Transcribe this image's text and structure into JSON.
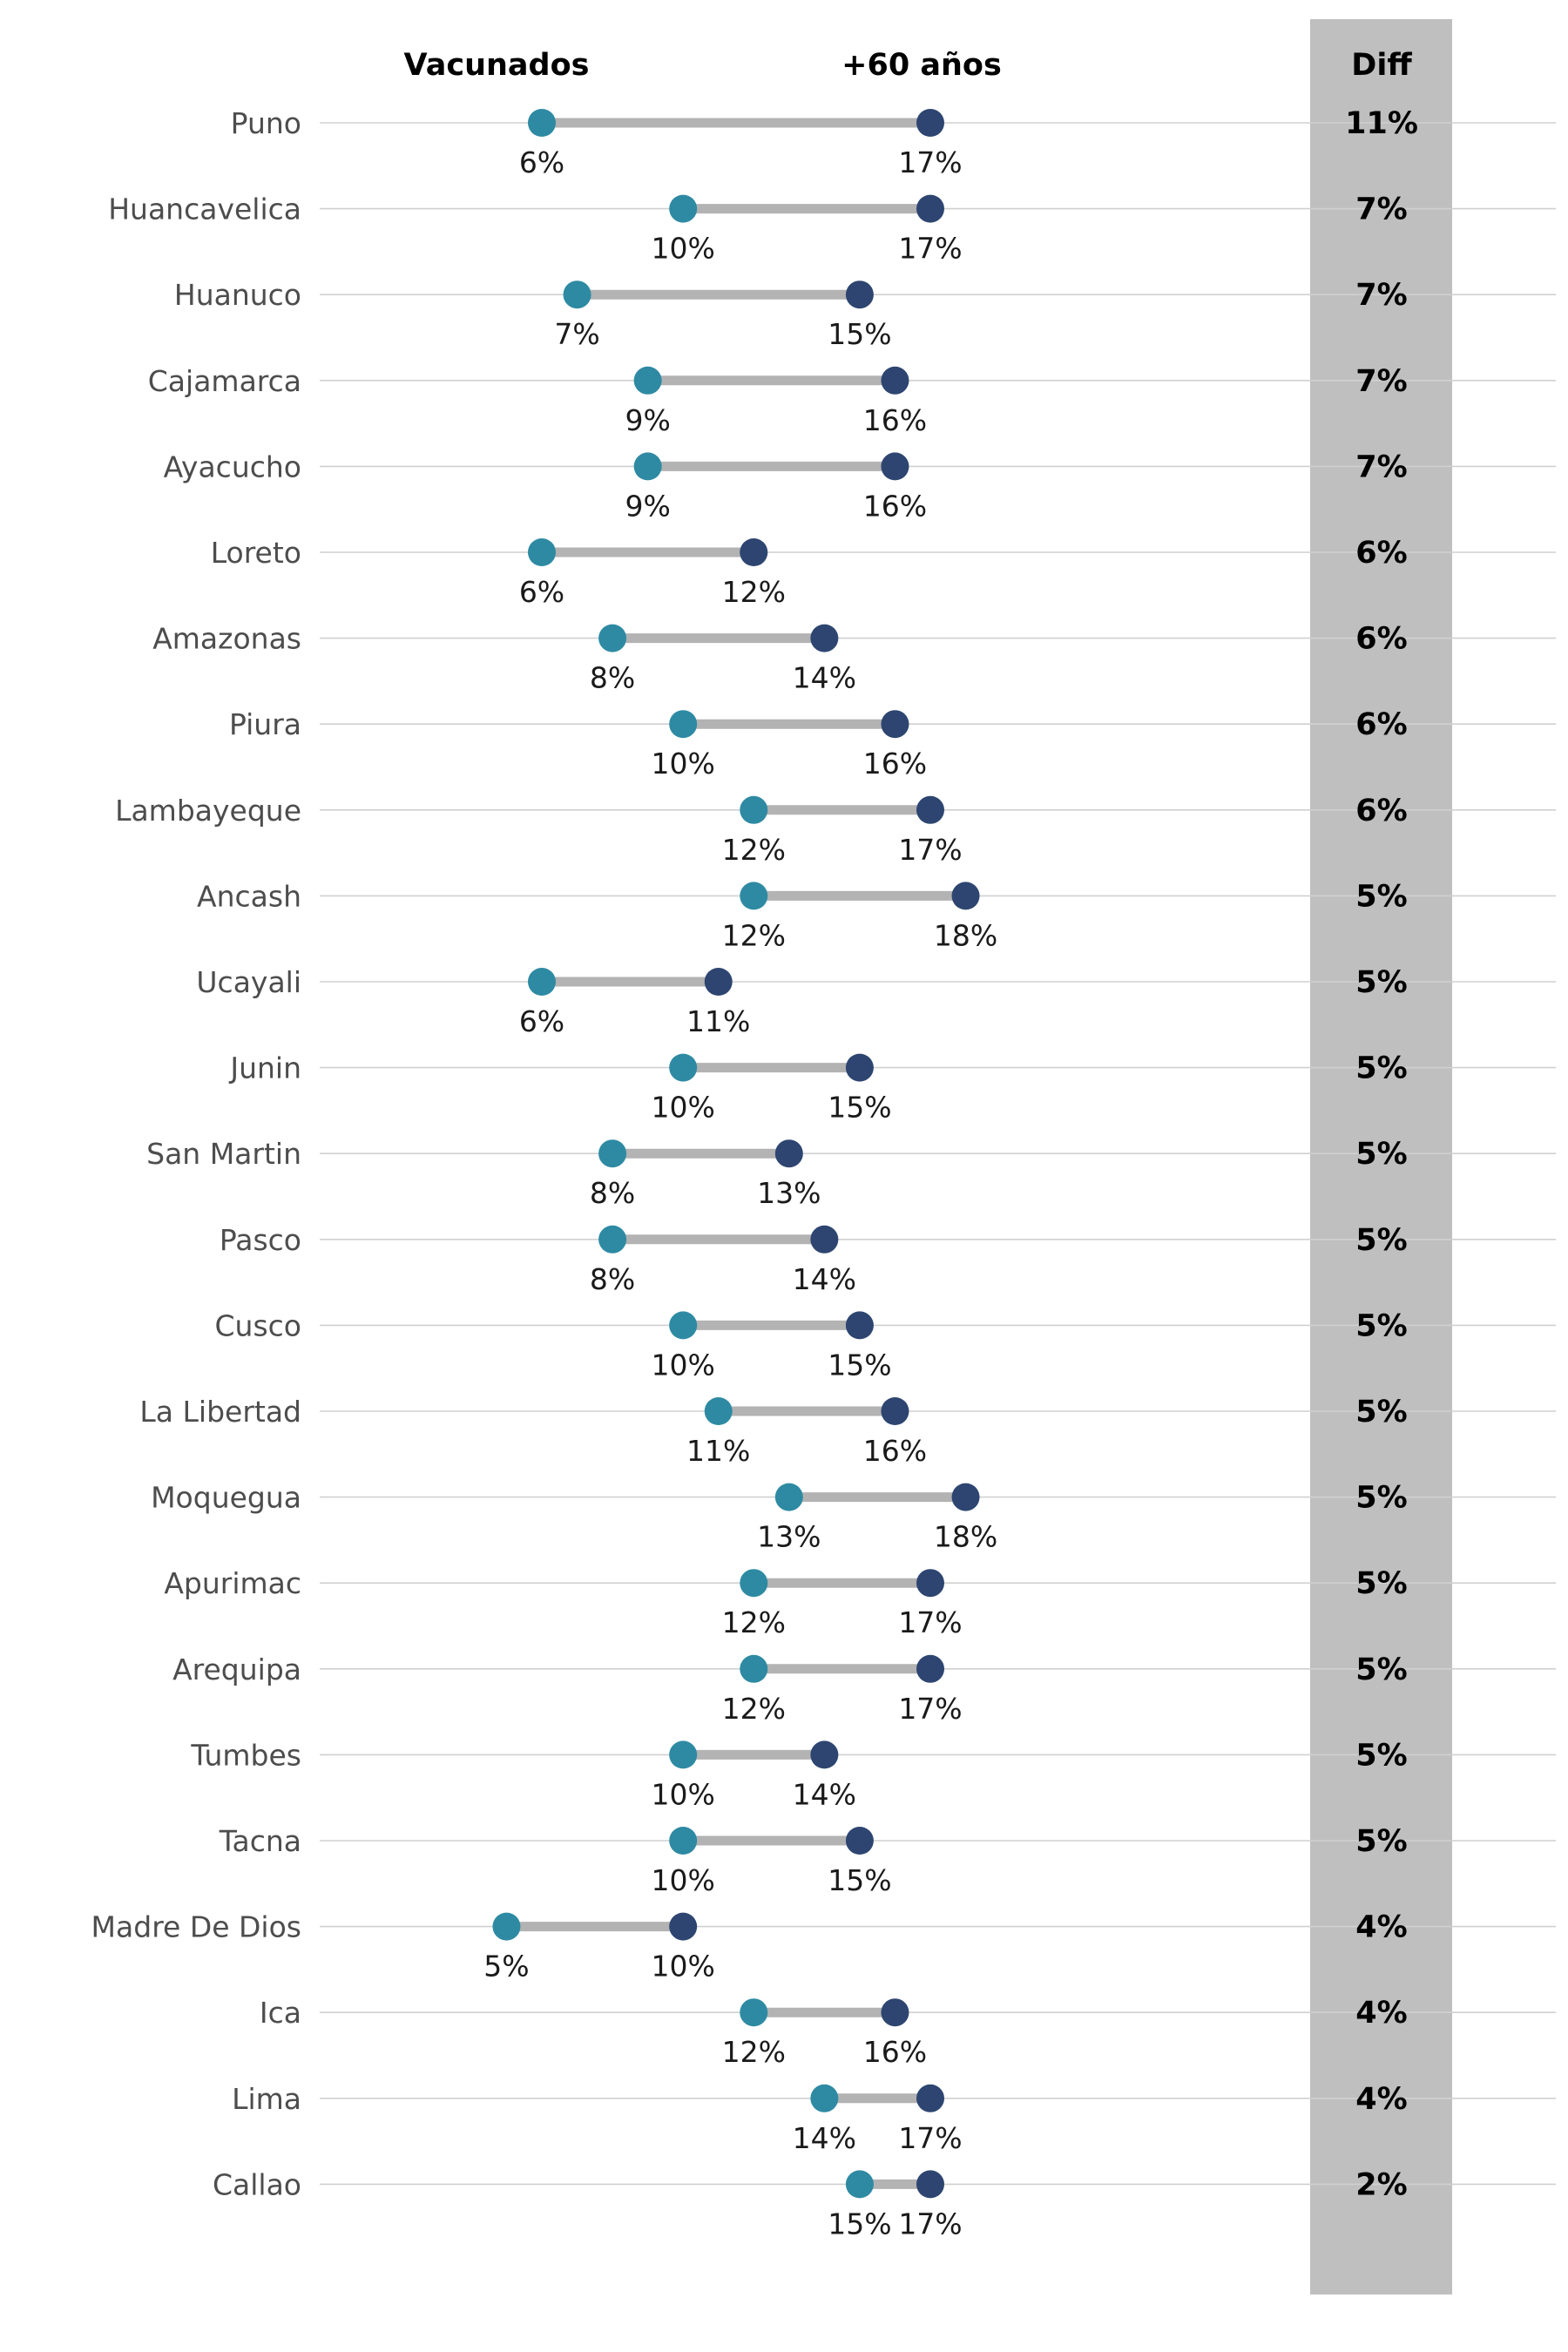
{
  "chart_data": {
    "type": "dumbbell",
    "headers": {
      "vacunados": "Vacunados",
      "mayores": "+60 años",
      "diff": "Diff"
    },
    "colors": {
      "vacunados": "#2e8aa3",
      "mayores": "#2d4570",
      "connector": "#b3b3b3",
      "diff_panel": "#bfbfbf",
      "gridline": "#d0d0d0"
    },
    "series": [
      {
        "name": "Vacunados",
        "values": [
          6,
          10,
          7,
          9,
          9,
          6,
          8,
          10,
          12,
          12,
          6,
          10,
          8,
          8,
          10,
          11,
          13,
          12,
          12,
          10,
          10,
          5,
          12,
          14,
          15
        ]
      },
      {
        "name": "+60 años",
        "values": [
          17,
          17,
          15,
          16,
          16,
          12,
          14,
          16,
          17,
          18,
          11,
          15,
          13,
          14,
          15,
          16,
          18,
          17,
          17,
          14,
          15,
          10,
          16,
          17,
          17
        ]
      }
    ],
    "rows": [
      {
        "region": "Puno",
        "vacunados": 6,
        "vacunados_label": "6%",
        "mayores": 17,
        "mayores_label": "17%",
        "diff_label": "11%"
      },
      {
        "region": "Huancavelica",
        "vacunados": 10,
        "vacunados_label": "10%",
        "mayores": 17,
        "mayores_label": "17%",
        "diff_label": "7%"
      },
      {
        "region": "Huanuco",
        "vacunados": 7,
        "vacunados_label": "7%",
        "mayores": 15,
        "mayores_label": "15%",
        "diff_label": "7%"
      },
      {
        "region": "Cajamarca",
        "vacunados": 9,
        "vacunados_label": "9%",
        "mayores": 16,
        "mayores_label": "16%",
        "diff_label": "7%"
      },
      {
        "region": "Ayacucho",
        "vacunados": 9,
        "vacunados_label": "9%",
        "mayores": 16,
        "mayores_label": "16%",
        "diff_label": "7%"
      },
      {
        "region": "Loreto",
        "vacunados": 6,
        "vacunados_label": "6%",
        "mayores": 12,
        "mayores_label": "12%",
        "diff_label": "6%"
      },
      {
        "region": "Amazonas",
        "vacunados": 8,
        "vacunados_label": "8%",
        "mayores": 14,
        "mayores_label": "14%",
        "diff_label": "6%"
      },
      {
        "region": "Piura",
        "vacunados": 10,
        "vacunados_label": "10%",
        "mayores": 16,
        "mayores_label": "16%",
        "diff_label": "6%"
      },
      {
        "region": "Lambayeque",
        "vacunados": 12,
        "vacunados_label": "12%",
        "mayores": 17,
        "mayores_label": "17%",
        "diff_label": "6%"
      },
      {
        "region": "Ancash",
        "vacunados": 12,
        "vacunados_label": "12%",
        "mayores": 18,
        "mayores_label": "18%",
        "diff_label": "5%"
      },
      {
        "region": "Ucayali",
        "vacunados": 6,
        "vacunados_label": "6%",
        "mayores": 11,
        "mayores_label": "11%",
        "diff_label": "5%"
      },
      {
        "region": "Junin",
        "vacunados": 10,
        "vacunados_label": "10%",
        "mayores": 15,
        "mayores_label": "15%",
        "diff_label": "5%"
      },
      {
        "region": "San Martin",
        "vacunados": 8,
        "vacunados_label": "8%",
        "mayores": 13,
        "mayores_label": "13%",
        "diff_label": "5%"
      },
      {
        "region": "Pasco",
        "vacunados": 8,
        "vacunados_label": "8%",
        "mayores": 14,
        "mayores_label": "14%",
        "diff_label": "5%"
      },
      {
        "region": "Cusco",
        "vacunados": 10,
        "vacunados_label": "10%",
        "mayores": 15,
        "mayores_label": "15%",
        "diff_label": "5%"
      },
      {
        "region": "La Libertad",
        "vacunados": 11,
        "vacunados_label": "11%",
        "mayores": 16,
        "mayores_label": "16%",
        "diff_label": "5%"
      },
      {
        "region": "Moquegua",
        "vacunados": 13,
        "vacunados_label": "13%",
        "mayores": 18,
        "mayores_label": "18%",
        "diff_label": "5%"
      },
      {
        "region": "Apurimac",
        "vacunados": 12,
        "vacunados_label": "12%",
        "mayores": 17,
        "mayores_label": "17%",
        "diff_label": "5%"
      },
      {
        "region": "Arequipa",
        "vacunados": 12,
        "vacunados_label": "12%",
        "mayores": 17,
        "mayores_label": "17%",
        "diff_label": "5%"
      },
      {
        "region": "Tumbes",
        "vacunados": 10,
        "vacunados_label": "10%",
        "mayores": 14,
        "mayores_label": "14%",
        "diff_label": "5%"
      },
      {
        "region": "Tacna",
        "vacunados": 10,
        "vacunados_label": "10%",
        "mayores": 15,
        "mayores_label": "15%",
        "diff_label": "5%"
      },
      {
        "region": "Madre De Dios",
        "vacunados": 5,
        "vacunados_label": "5%",
        "mayores": 10,
        "mayores_label": "10%",
        "diff_label": "4%"
      },
      {
        "region": "Ica",
        "vacunados": 12,
        "vacunados_label": "12%",
        "mayores": 16,
        "mayores_label": "16%",
        "diff_label": "4%"
      },
      {
        "region": "Lima",
        "vacunados": 14,
        "vacunados_label": "14%",
        "mayores": 17,
        "mayores_label": "17%",
        "diff_label": "4%"
      },
      {
        "region": "Callao",
        "vacunados": 15,
        "vacunados_label": "15%",
        "mayores": 17,
        "mayores_label": "17%",
        "diff_label": "2%"
      }
    ],
    "xlim": [
      3,
      22
    ],
    "grid": true
  }
}
